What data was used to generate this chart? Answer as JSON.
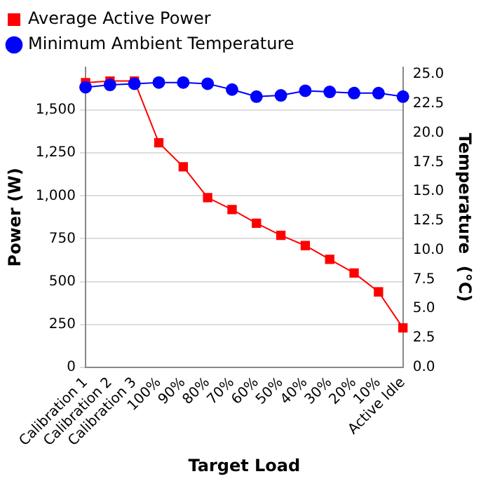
{
  "chart_data": {
    "type": "line",
    "xlabel": "Target Load",
    "ylabel": "Power (W)",
    "y2label": "Temperature  (°C)",
    "categories": [
      "Calibration 1",
      "Calibration 2",
      "Calibration 3",
      "100%",
      "90%",
      "80%",
      "70%",
      "60%",
      "50%",
      "40%",
      "30%",
      "20%",
      "10%",
      "Active Idle"
    ],
    "series": [
      {
        "name": "Average Active Power",
        "color": "#ff0000",
        "marker": "square",
        "values": [
          1660,
          1670,
          1670,
          1310,
          1170,
          990,
          920,
          840,
          770,
          710,
          630,
          550,
          440,
          230
        ]
      },
      {
        "name": "Minimum Ambient Temperature",
        "color": "#0000ff",
        "marker": "circle",
        "axis": "y2",
        "values": [
          23.9,
          24.1,
          24.2,
          24.3,
          24.3,
          24.2,
          23.7,
          23.1,
          23.2,
          23.6,
          23.5,
          23.4,
          23.4,
          23.1
        ]
      }
    ],
    "ylim": [
      0,
      1750
    ],
    "yticks": [
      {
        "value": 0,
        "label": "0"
      },
      {
        "value": 250,
        "label": "250"
      },
      {
        "value": 500,
        "label": "500"
      },
      {
        "value": 750,
        "label": "750"
      },
      {
        "value": 1000,
        "label": "1,000"
      },
      {
        "value": 1250,
        "label": "1,250"
      },
      {
        "value": 1500,
        "label": "1,500"
      }
    ],
    "y2lim": [
      0,
      25.6
    ],
    "y2ticks": [
      {
        "value": 0,
        "label": "0.0"
      },
      {
        "value": 2.5,
        "label": "2.5"
      },
      {
        "value": 5,
        "label": "5.0"
      },
      {
        "value": 7.5,
        "label": "7.5"
      },
      {
        "value": 10,
        "label": "10.0"
      },
      {
        "value": 12.5,
        "label": "12.5"
      },
      {
        "value": 15,
        "label": "15.0"
      },
      {
        "value": 17.5,
        "label": "17.5"
      },
      {
        "value": 20,
        "label": "20.0"
      },
      {
        "value": 22.5,
        "label": "22.5"
      },
      {
        "value": 25,
        "label": "25.0"
      }
    ],
    "grid": "y",
    "legend": "top"
  }
}
